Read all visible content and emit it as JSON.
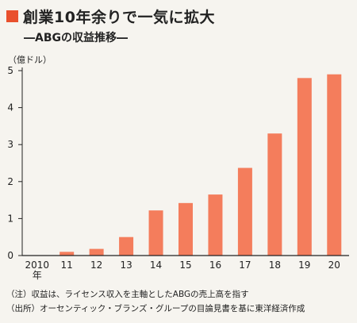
{
  "title": "創業10年余りで一気に拡大",
  "subtitle": "―ABGの収益推移―",
  "unit_label": "（億ドル）",
  "colors": {
    "bar": "#f47d5c",
    "accent": "#e9502d",
    "axis": "#222222",
    "background": "#f6f4ef"
  },
  "note": "（注）収益は、ライセンス収入を主軸としたABGの売上高を指す",
  "source": "（出所）オーセンティック・ブランズ・グループの目論見書を基に東洋経済作成",
  "chart_data": {
    "type": "bar",
    "categories": [
      "2010\n年",
      "11",
      "12",
      "13",
      "14",
      "15",
      "16",
      "17",
      "18",
      "19",
      "20"
    ],
    "values": [
      0.0,
      0.1,
      0.18,
      0.5,
      1.22,
      1.42,
      1.65,
      2.37,
      3.3,
      4.8,
      4.9
    ],
    "ylim": [
      0,
      5
    ],
    "yticks": [
      0,
      1,
      2,
      3,
      4,
      5
    ],
    "grid": false,
    "xlabel": "",
    "ylabel": ""
  }
}
